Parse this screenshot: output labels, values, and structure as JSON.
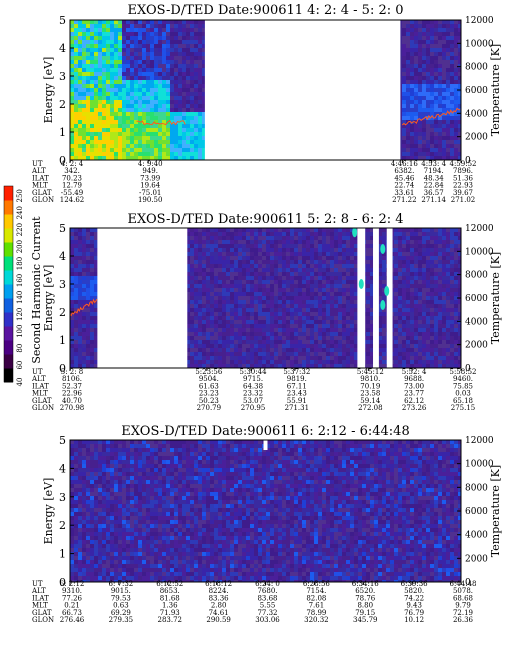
{
  "chart_data": [
    {
      "type": "heatmap",
      "title": "EXOS-D/TED   Date:900611  4: 2: 4 - 5: 2: 0",
      "ylabel": "Energy [eV]",
      "y2label": "Temperature [K]",
      "ylim": [
        0,
        5
      ],
      "yticks": [
        "0",
        "1",
        "2",
        "3",
        "4",
        "5"
      ],
      "y2lim": [
        0,
        12000
      ],
      "y2ticks": [
        "0",
        "2000",
        "4000",
        "6000",
        "8000",
        "10000",
        "12000"
      ],
      "gaps": [
        [
          0.345,
          0.845
        ]
      ],
      "orbit_labels": [
        "UT",
        "ALT",
        "ILAT",
        "MLT",
        "GLAT",
        "GLON"
      ],
      "orbit_columns": [
        {
          "pos": 0.0,
          "values": [
            "4: 2: 4",
            "342.",
            "70.23",
            "12.79",
            "-55.49",
            "124.62"
          ]
        },
        {
          "pos": 0.2,
          "values": [
            "4: 9:40",
            "949.",
            "73.99",
            "19.64",
            "-75.01",
            "190.50"
          ]
        },
        {
          "pos": 0.85,
          "values": [
            "4:46:16",
            "6382.",
            "45.46",
            "22.74",
            "33.61",
            "271.22"
          ]
        },
        {
          "pos": 0.925,
          "values": [
            "4:53: 4",
            "7194.",
            "48.34",
            "22.84",
            "36.57",
            "271.14"
          ]
        },
        {
          "pos": 1.0,
          "values": [
            "4:59:52",
            "7896.",
            "51.36",
            "22.93",
            "39.67",
            "271.02"
          ]
        }
      ]
    },
    {
      "type": "heatmap",
      "title": "EXOS-D/TED   Date:900611  5: 2: 8 - 6: 2: 4",
      "ylabel": "Energy [eV]",
      "y2label": "Temperature [K]",
      "ylim": [
        0,
        5
      ],
      "yticks": [
        "0",
        "1",
        "2",
        "3",
        "4",
        "5"
      ],
      "y2lim": [
        0,
        12000
      ],
      "y2ticks": [
        "0",
        "2000",
        "4000",
        "6000",
        "8000",
        "10000",
        "12000"
      ],
      "gaps": [
        [
          0.07,
          0.3
        ],
        [
          0.735,
          0.755
        ],
        [
          0.775,
          0.79
        ],
        [
          0.81,
          0.825
        ]
      ],
      "orbit_labels": [
        "UT",
        "ALT",
        "ILAT",
        "MLT",
        "GLAT",
        "GLON"
      ],
      "orbit_columns": [
        {
          "pos": 0.0,
          "values": [
            "5: 2: 8",
            "8106.",
            "52.37",
            "22.96",
            "40.70",
            "270.98"
          ]
        },
        {
          "pos": 0.35,
          "values": [
            "5:23:56",
            "9504.",
            "61.63",
            "23.23",
            "50.23",
            "270.79"
          ]
        },
        {
          "pos": 0.463,
          "values": [
            "5:30:44",
            "9715.",
            "64.38",
            "23.32",
            "53.07",
            "270.95"
          ]
        },
        {
          "pos": 0.575,
          "values": [
            "5:37:32",
            "9819.",
            "67.11",
            "23.43",
            "55.91",
            "271.31"
          ]
        },
        {
          "pos": 0.763,
          "values": [
            "5:45:12",
            "9810.",
            "70.19",
            "23.58",
            "59.14",
            "272.08"
          ]
        },
        {
          "pos": 0.875,
          "values": [
            "5:52: 4",
            "9688.",
            "73.00",
            "23.77",
            "62.12",
            "273.26"
          ]
        },
        {
          "pos": 1.0,
          "values": [
            "5:58:52",
            "9460.",
            "75.85",
            "0.03",
            "65.18",
            "275.15"
          ]
        }
      ]
    },
    {
      "type": "heatmap",
      "title": "EXOS-D/TED   Date:900611  6: 2:12 - 6:44:48",
      "ylabel": "Energy [eV]",
      "y2label": "Temperature [K]",
      "ylim": [
        0,
        5
      ],
      "yticks": [
        "0",
        "1",
        "2",
        "3",
        "4",
        "5"
      ],
      "y2lim": [
        0,
        12000
      ],
      "y2ticks": [
        "0",
        "2000",
        "4000",
        "6000",
        "8000",
        "10000",
        "12000"
      ],
      "gaps": [],
      "orbit_labels": [
        "UT",
        "ALT",
        "ILAT",
        "MLT",
        "GLAT",
        "GLON"
      ],
      "orbit_columns": [
        {
          "pos": 0.0,
          "values": [
            "6: 2:12",
            "9310.",
            "77.26",
            "0.21",
            "66.73",
            "276.46"
          ]
        },
        {
          "pos": 0.125,
          "values": [
            "6: 7:32",
            "9015.",
            "79.53",
            "0.63",
            "69.29",
            "279.35"
          ]
        },
        {
          "pos": 0.25,
          "values": [
            "6:12:52",
            "8653.",
            "81.68",
            "1.36",
            "71.93",
            "283.72"
          ]
        },
        {
          "pos": 0.375,
          "values": [
            "6:18:12",
            "8224.",
            "83.36",
            "2.80",
            "74.61",
            "290.59"
          ]
        },
        {
          "pos": 0.5,
          "values": [
            "6:24: 0",
            "7680.",
            "83.68",
            "5.55",
            "77.32",
            "303.06"
          ]
        },
        {
          "pos": 0.625,
          "values": [
            "6:28:56",
            "7154.",
            "82.08",
            "7.61",
            "78.99",
            "320.32"
          ]
        },
        {
          "pos": 0.75,
          "values": [
            "6:34:16",
            "6520.",
            "78.76",
            "8.80",
            "79.15",
            "345.79"
          ]
        },
        {
          "pos": 0.875,
          "values": [
            "6:39:36",
            "5820.",
            "74.22",
            "9.43",
            "76.79",
            "10.12"
          ]
        },
        {
          "pos": 1.0,
          "values": [
            "6:44:48",
            "5078.",
            "68.68",
            "9.79",
            "72.19",
            "26.36"
          ]
        }
      ]
    }
  ],
  "colorbar": {
    "label": "Second Harmonic Current",
    "ticks": [
      "40",
      "60",
      "80",
      "100",
      "120",
      "140",
      "160",
      "180",
      "200",
      "220",
      "240",
      "250"
    ],
    "colors": [
      "#000000",
      "#3a0044",
      "#4b0082",
      "#5a14a0",
      "#3030c8",
      "#1060e0",
      "#00a0f0",
      "#00d8d8",
      "#00e07a",
      "#60e000",
      "#d8e800",
      "#ffc800",
      "#ff7800",
      "#ff2000"
    ]
  }
}
